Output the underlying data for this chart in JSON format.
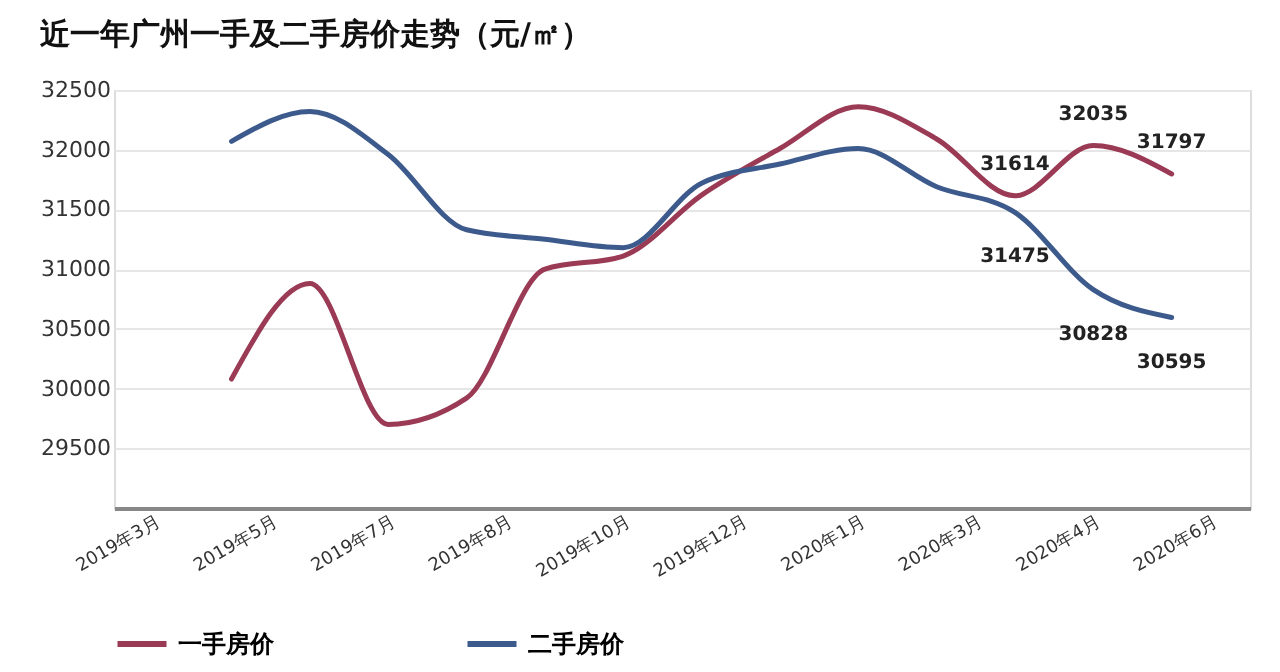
{
  "chart_data": {
    "type": "line",
    "title": "近一年广州一手及二手房价走势（元/㎡）",
    "categories": [
      "2019年3月",
      null,
      null,
      "2019年5月",
      null,
      null,
      "2019年7月",
      null,
      null,
      "2019年8月",
      null,
      null,
      "2019年10月",
      null,
      null,
      "2019年12月",
      null,
      null,
      "2020年1月",
      null,
      null,
      "2020年3月",
      null,
      null,
      "2020年4月",
      null,
      null,
      "2020年6月"
    ],
    "ylim": [
      29000,
      32500
    ],
    "yticks": [
      29500,
      30000,
      30500,
      31000,
      31500,
      32000,
      32500
    ],
    "grid": "y",
    "legend": "bottom",
    "line_style": "solid",
    "marker": "none",
    "series": [
      {
        "name": "一手房价",
        "color": "#9b3a55",
        "values": [
          null,
          null,
          30080,
          null,
          30880,
          null,
          29700,
          null,
          29920,
          null,
          31000,
          null,
          31110,
          null,
          31620,
          null,
          32010,
          null,
          32360,
          null,
          32090,
          null,
          31614,
          null,
          32035,
          null,
          31797,
          null
        ],
        "value_labels": [
          null,
          null,
          null,
          null,
          null,
          null,
          null,
          null,
          null,
          null,
          null,
          null,
          null,
          null,
          null,
          null,
          null,
          null,
          null,
          null,
          null,
          null,
          "31614",
          null,
          "32035",
          null,
          "31797",
          null
        ]
      },
      {
        "name": "二手房价",
        "color": "#3d5a8c",
        "values": [
          null,
          null,
          32070,
          null,
          32320,
          null,
          31960,
          null,
          31330,
          null,
          31250,
          null,
          31180,
          null,
          31720,
          null,
          31880,
          null,
          32010,
          null,
          31690,
          null,
          31475,
          null,
          30828,
          null,
          30595,
          null
        ],
        "value_labels": [
          null,
          null,
          null,
          null,
          null,
          null,
          null,
          null,
          null,
          null,
          null,
          null,
          null,
          null,
          null,
          null,
          null,
          null,
          null,
          null,
          null,
          null,
          "31475",
          null,
          "30828",
          null,
          "30595",
          null
        ]
      }
    ]
  }
}
